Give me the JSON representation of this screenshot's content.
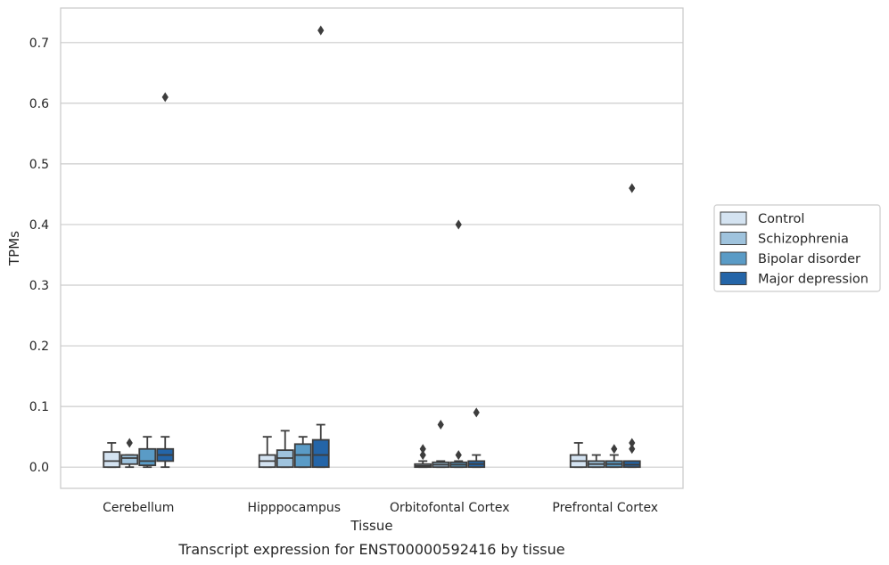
{
  "caption": "Transcript expression for ENST00000592416 by tissue",
  "chart_data": {
    "type": "box",
    "xlabel": "Tissue",
    "ylabel": "TPMs",
    "ylim": [
      -0.035,
      0.757
    ],
    "yticks": [
      0.0,
      0.1,
      0.2,
      0.3,
      0.4,
      0.5,
      0.6,
      0.7
    ],
    "ytick_labels": [
      "0.0",
      "0.1",
      "0.2",
      "0.3",
      "0.4",
      "0.5",
      "0.6",
      "0.7"
    ],
    "grid": "horizontal",
    "legend_position": "right",
    "categories": [
      "Cerebellum",
      "Hipppocampus",
      "Orbitofontal Cortex",
      "Prefrontal Cortex"
    ],
    "series": [
      {
        "name": "Control",
        "color": "#d4e3f1",
        "boxes": [
          {
            "q1": 0.0,
            "median": 0.01,
            "q3": 0.025,
            "whisker_low": 0.0,
            "whisker_high": 0.04,
            "outliers": []
          },
          {
            "q1": 0.0,
            "median": 0.01,
            "q3": 0.02,
            "whisker_low": 0.0,
            "whisker_high": 0.05,
            "outliers": []
          },
          {
            "q1": 0.0,
            "median": 0.002,
            "q3": 0.005,
            "whisker_low": 0.0,
            "whisker_high": 0.01,
            "outliers": [
              0.02,
              0.03
            ]
          },
          {
            "q1": 0.0,
            "median": 0.01,
            "q3": 0.02,
            "whisker_low": 0.0,
            "whisker_high": 0.04,
            "outliers": []
          }
        ]
      },
      {
        "name": "Schizophrenia",
        "color": "#9fc3dd",
        "boxes": [
          {
            "q1": 0.005,
            "median": 0.015,
            "q3": 0.02,
            "whisker_low": 0.0,
            "whisker_high": 0.02,
            "outliers": [
              0.04
            ]
          },
          {
            "q1": 0.0,
            "median": 0.015,
            "q3": 0.028,
            "whisker_low": 0.0,
            "whisker_high": 0.06,
            "outliers": []
          },
          {
            "q1": 0.0,
            "median": 0.004,
            "q3": 0.008,
            "whisker_low": 0.0,
            "whisker_high": 0.01,
            "outliers": [
              0.07
            ]
          },
          {
            "q1": 0.0,
            "median": 0.005,
            "q3": 0.01,
            "whisker_low": 0.0,
            "whisker_high": 0.02,
            "outliers": []
          }
        ]
      },
      {
        "name": "Bipolar disorder",
        "color": "#5a9bc6",
        "boxes": [
          {
            "q1": 0.003,
            "median": 0.01,
            "q3": 0.03,
            "whisker_low": 0.0,
            "whisker_high": 0.05,
            "outliers": []
          },
          {
            "q1": 0.0,
            "median": 0.02,
            "q3": 0.038,
            "whisker_low": 0.0,
            "whisker_high": 0.05,
            "outliers": []
          },
          {
            "q1": 0.0,
            "median": 0.004,
            "q3": 0.008,
            "whisker_low": 0.0,
            "whisker_high": 0.01,
            "outliers": [
              0.02,
              0.4
            ]
          },
          {
            "q1": 0.0,
            "median": 0.005,
            "q3": 0.01,
            "whisker_low": 0.0,
            "whisker_high": 0.02,
            "outliers": [
              0.03
            ]
          }
        ]
      },
      {
        "name": "Major depression",
        "color": "#2465a8",
        "boxes": [
          {
            "q1": 0.01,
            "median": 0.02,
            "q3": 0.03,
            "whisker_low": 0.0,
            "whisker_high": 0.05,
            "outliers": [
              0.61
            ]
          },
          {
            "q1": 0.0,
            "median": 0.02,
            "q3": 0.045,
            "whisker_low": 0.0,
            "whisker_high": 0.07,
            "outliers": [
              0.72
            ]
          },
          {
            "q1": 0.0,
            "median": 0.005,
            "q3": 0.01,
            "whisker_low": 0.0,
            "whisker_high": 0.02,
            "outliers": [
              0.09
            ]
          },
          {
            "q1": 0.0,
            "median": 0.004,
            "q3": 0.01,
            "whisker_low": 0.0,
            "whisker_high": 0.01,
            "outliers": [
              0.03,
              0.04,
              0.46
            ]
          }
        ]
      }
    ]
  }
}
